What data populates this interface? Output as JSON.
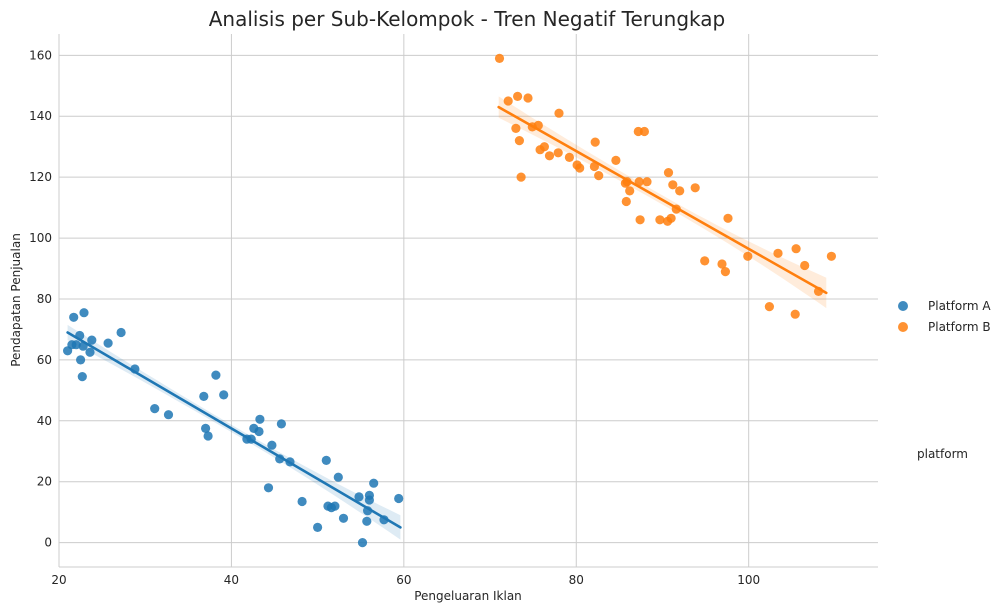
{
  "chart_data": {
    "type": "scatter",
    "title": "Analisis per Sub-Kelompok - Tren Negatif Terungkap",
    "xlabel": "Pengeluaran Iklan",
    "ylabel": "Pendapatan Penjualan",
    "xlim": [
      20,
      115
    ],
    "ylim": [
      -8,
      167
    ],
    "x_ticks": [
      20,
      40,
      60,
      80,
      100
    ],
    "y_ticks": [
      0,
      20,
      40,
      60,
      80,
      100,
      120,
      140,
      160
    ],
    "grid": true,
    "legend": {
      "title": "platform",
      "placement": "right"
    },
    "series": [
      {
        "name": "Platform A",
        "color": "#1f77b4",
        "regression": {
          "x": [
            21,
            59.6
          ],
          "y": [
            69,
            5
          ],
          "ci_start": 2.5,
          "ci_mid": 1.2,
          "ci_end": 4
        },
        "points": [
          [
            21,
            63
          ],
          [
            21.5,
            65
          ],
          [
            21.7,
            74
          ],
          [
            22,
            65
          ],
          [
            22.4,
            68
          ],
          [
            22.5,
            60
          ],
          [
            22.7,
            54.5
          ],
          [
            22.8,
            64.5
          ],
          [
            22.9,
            75.5
          ],
          [
            23.6,
            62.5
          ],
          [
            23.8,
            66.5
          ],
          [
            25.7,
            65.5
          ],
          [
            27.2,
            69
          ],
          [
            28.8,
            57
          ],
          [
            31.1,
            44
          ],
          [
            32.7,
            42
          ],
          [
            36.8,
            48
          ],
          [
            37,
            37.5
          ],
          [
            37.3,
            35
          ],
          [
            38.2,
            55
          ],
          [
            39.1,
            48.5
          ],
          [
            41.8,
            34
          ],
          [
            42.3,
            34
          ],
          [
            42.6,
            37.5
          ],
          [
            43.2,
            36.5
          ],
          [
            43.3,
            40.5
          ],
          [
            44.3,
            18
          ],
          [
            44.7,
            32
          ],
          [
            45.6,
            27.5
          ],
          [
            45.8,
            39
          ],
          [
            46.8,
            26.5
          ],
          [
            48.2,
            13.5
          ],
          [
            50,
            5
          ],
          [
            51,
            27
          ],
          [
            51.2,
            12
          ],
          [
            51.6,
            11.5
          ],
          [
            52,
            12
          ],
          [
            52.4,
            21.5
          ],
          [
            53,
            8
          ],
          [
            54.8,
            15
          ],
          [
            55.2,
            0
          ],
          [
            55.7,
            7
          ],
          [
            55.8,
            10.5
          ],
          [
            56,
            14
          ],
          [
            56,
            15.5
          ],
          [
            56.5,
            19.5
          ],
          [
            57.7,
            7.5
          ],
          [
            59.4,
            14.5
          ]
        ]
      },
      {
        "name": "Platform B",
        "color": "#ff7f0e",
        "regression": {
          "x": [
            71,
            109
          ],
          "y": [
            143,
            82
          ],
          "ci_start": 3.5,
          "ci_mid": 1.5,
          "ci_end": 5
        },
        "points": [
          [
            71.1,
            159
          ],
          [
            72.1,
            145
          ],
          [
            73,
            136
          ],
          [
            73.2,
            146.5
          ],
          [
            73.4,
            132
          ],
          [
            73.6,
            120
          ],
          [
            74.4,
            146
          ],
          [
            74.9,
            136.5
          ],
          [
            75.6,
            137
          ],
          [
            75.8,
            129
          ],
          [
            76.3,
            130
          ],
          [
            76.9,
            127
          ],
          [
            77.9,
            128
          ],
          [
            78,
            141
          ],
          [
            79.2,
            126.5
          ],
          [
            80.1,
            124
          ],
          [
            80.4,
            123
          ],
          [
            82.1,
            123.5
          ],
          [
            82.2,
            131.5
          ],
          [
            82.6,
            120.5
          ],
          [
            84.6,
            125.5
          ],
          [
            85.7,
            118
          ],
          [
            85.8,
            112
          ],
          [
            85.9,
            118.5
          ],
          [
            86.2,
            115.5
          ],
          [
            87.2,
            135
          ],
          [
            87.3,
            118.5
          ],
          [
            87.4,
            106
          ],
          [
            87.9,
            135
          ],
          [
            88.2,
            118.5
          ],
          [
            89.7,
            106
          ],
          [
            90.6,
            105.5
          ],
          [
            90.7,
            121.5
          ],
          [
            91,
            106.5
          ],
          [
            91.2,
            117.5
          ],
          [
            91.6,
            109.5
          ],
          [
            92,
            115.5
          ],
          [
            93.8,
            116.5
          ],
          [
            94.9,
            92.5
          ],
          [
            96.9,
            91.5
          ],
          [
            97.3,
            89
          ],
          [
            97.6,
            106.5
          ],
          [
            99.9,
            94
          ],
          [
            102.4,
            77.5
          ],
          [
            103.4,
            95
          ],
          [
            105.4,
            75
          ],
          [
            105.5,
            96.5
          ],
          [
            106.5,
            91
          ],
          [
            108.1,
            82.5
          ],
          [
            109.6,
            94
          ]
        ]
      }
    ]
  }
}
